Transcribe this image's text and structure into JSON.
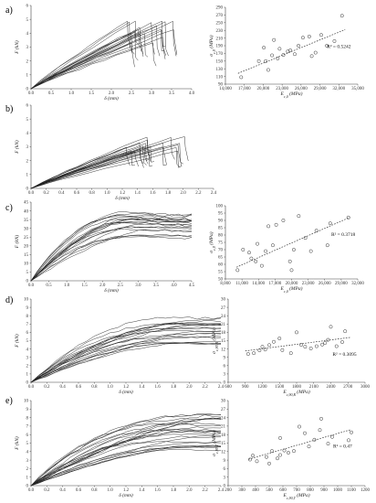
{
  "figure": {
    "width": 412,
    "height": 550
  },
  "chart_data": [
    {
      "id": "a-left",
      "panel_label": "a)",
      "type": "line",
      "xlabel": "δ (mm)",
      "ylabel": "F (kN)",
      "xlim": [
        0,
        4
      ],
      "ylim": [
        0,
        6
      ],
      "xticks": [
        "0.0",
        "0.5",
        "1.0",
        "1.5",
        "2.0",
        "2.5",
        "3.0",
        "3.5",
        "4.0"
      ],
      "yticks": [
        "0",
        "1",
        "2",
        "3",
        "4",
        "5",
        "6"
      ],
      "pattern": "linear_to_peak_then_drop",
      "peak_x_range": [
        2.4,
        3.7
      ],
      "peak_y_range": [
        3.0,
        5.0
      ],
      "n_curves": 20
    },
    {
      "id": "a-right",
      "type": "scatter",
      "xlabel": "E_{c,0} (MPa)",
      "ylabel": "σ_{c,0} (MPa)",
      "xlim": [
        14000,
        35000
      ],
      "ylim": [
        90,
        290
      ],
      "xticks": [
        "14,000",
        "17,000",
        "20,000",
        "23,000",
        "26,000",
        "29,000",
        "32,000",
        "35,000"
      ],
      "yticks": [
        "90",
        "110",
        "130",
        "150",
        "170",
        "190",
        "210",
        "230",
        "250",
        "270",
        "290"
      ],
      "r2_label": "R² = 0.5242",
      "trend": {
        "x": [
          16000,
          33000
        ],
        "y": [
          118,
          232
        ]
      },
      "points": [
        [
          16500,
          108
        ],
        [
          19300,
          150
        ],
        [
          20100,
          185
        ],
        [
          20400,
          150
        ],
        [
          20800,
          127
        ],
        [
          21400,
          165
        ],
        [
          21700,
          205
        ],
        [
          22300,
          157
        ],
        [
          22600,
          182
        ],
        [
          23200,
          166
        ],
        [
          23900,
          175
        ],
        [
          24300,
          178
        ],
        [
          25000,
          168
        ],
        [
          25600,
          190
        ],
        [
          26300,
          211
        ],
        [
          27300,
          214
        ],
        [
          27700,
          163
        ],
        [
          28300,
          172
        ],
        [
          29200,
          218
        ],
        [
          30100,
          190
        ],
        [
          31300,
          202
        ],
        [
          32500,
          268
        ]
      ]
    },
    {
      "id": "b-left",
      "panel_label": "b)",
      "type": "line",
      "xlabel": "δ (mm)",
      "ylabel": "F (kN)",
      "xlim": [
        0,
        2.4
      ],
      "ylim": [
        0,
        6
      ],
      "xticks": [
        "0.0",
        "0.2",
        "0.4",
        "0.6",
        "0.8",
        "1.0",
        "1.2",
        "1.4",
        "1.6",
        "1.8",
        "2.0",
        "2.2",
        "2.4"
      ],
      "yticks": [
        "0",
        "1",
        "2",
        "3",
        "4",
        "5",
        "6"
      ],
      "pattern": "linear_to_peak_then_drop",
      "peak_x_range": [
        1.25,
        2.05
      ],
      "peak_y_range": [
        2.2,
        3.8
      ],
      "n_curves": 20
    },
    {
      "id": "c-left",
      "panel_label": "c)",
      "type": "line",
      "xlabel": "δ (mm)",
      "ylabel": "F (kN)",
      "xlim": [
        0,
        4.5
      ],
      "ylim": [
        0,
        45
      ],
      "xticks": [
        "0.0",
        "0.5",
        "1.0",
        "1.5",
        "2.0",
        "2.5",
        "3.0",
        "3.5",
        "4.0",
        "4.5"
      ],
      "yticks": [
        "0",
        "5",
        "10",
        "15",
        "20",
        "25",
        "30",
        "35",
        "40",
        "45"
      ],
      "pattern": "rise_to_plateau",
      "peak_x_range": [
        2.4,
        3.3
      ],
      "peak_y_range": [
        22,
        39
      ],
      "n_curves": 20
    },
    {
      "id": "c-right",
      "type": "scatter",
      "xlabel": "E_{c,0} (MPa)",
      "ylabel": "σ_{c,0} (MPa)",
      "xlim": [
        8000,
        32000
      ],
      "ylim": [
        50,
        100
      ],
      "xticks": [
        "8,000",
        "11,000",
        "14,000",
        "17,000",
        "20,000",
        "23,000",
        "26,000",
        "29,000",
        "32,000"
      ],
      "yticks": [
        "50",
        "55",
        "60",
        "65",
        "70",
        "75",
        "80",
        "85",
        "90",
        "95",
        "100"
      ],
      "r2_label": "R² = 0.3718",
      "trend": {
        "x": [
          10000,
          30500
        ],
        "y": [
          58,
          92
        ]
      },
      "points": [
        [
          10200,
          56
        ],
        [
          11200,
          70
        ],
        [
          12300,
          68
        ],
        [
          12700,
          64
        ],
        [
          13500,
          62
        ],
        [
          13800,
          74
        ],
        [
          14600,
          59
        ],
        [
          15300,
          69
        ],
        [
          15800,
          86
        ],
        [
          16600,
          73
        ],
        [
          17200,
          87
        ],
        [
          18500,
          90
        ],
        [
          19700,
          62
        ],
        [
          20000,
          56
        ],
        [
          20400,
          70
        ],
        [
          21300,
          93
        ],
        [
          22500,
          78
        ],
        [
          23500,
          69
        ],
        [
          24500,
          83
        ],
        [
          26500,
          73
        ],
        [
          27000,
          88
        ],
        [
          30300,
          92
        ]
      ]
    },
    {
      "id": "d-left",
      "panel_label": "d)",
      "type": "line",
      "xlabel": "δ (mm)",
      "ylabel": "F (kN)",
      "xlim": [
        0,
        2.4
      ],
      "ylim": [
        0,
        10
      ],
      "xticks": [
        "0.0",
        "0.2",
        "0.4",
        "0.6",
        "0.8",
        "1.0",
        "1.2",
        "1.4",
        "1.6",
        "1.8",
        "2.0",
        "2.2",
        "2.4"
      ],
      "yticks": [
        "0",
        "1",
        "2",
        "3",
        "4",
        "5",
        "6",
        "7",
        "8",
        "9",
        "10"
      ],
      "pattern": "rise_to_plateau",
      "peak_x_range": [
        1.7,
        2.4
      ],
      "peak_y_range": [
        3.8,
        8.0
      ],
      "n_curves": 20
    },
    {
      "id": "d-right",
      "type": "scatter",
      "xlabel": "E_{c,90,R} (MPa)",
      "ylabel": "σ_{c,90,R} (MPa)",
      "xlim": [
        600,
        3000
      ],
      "ylim": [
        0,
        30
      ],
      "xticks": [
        "600",
        "900",
        "1200",
        "1500",
        "1800",
        "2100",
        "2400",
        "2700",
        "3000"
      ],
      "yticks": [
        "0",
        "3",
        "6",
        "9",
        "12",
        "15",
        "18",
        "21",
        "24",
        "27",
        "30"
      ],
      "r2_label": "R² = 0.3095",
      "trend": {
        "x": [
          900,
          2750
        ],
        "y": [
          11.3,
          16.2
        ]
      },
      "points": [
        [
          950,
          10.2
        ],
        [
          1050,
          10.5
        ],
        [
          1150,
          11.5
        ],
        [
          1200,
          12.8
        ],
        [
          1250,
          11.8
        ],
        [
          1320,
          13.4
        ],
        [
          1400,
          14.6
        ],
        [
          1500,
          15.8
        ],
        [
          1550,
          11.6
        ],
        [
          1700,
          10.5
        ],
        [
          1800,
          18.0
        ],
        [
          1880,
          13.5
        ],
        [
          1950,
          12.8
        ],
        [
          2050,
          12.2
        ],
        [
          2150,
          13.0
        ],
        [
          2250,
          13.6
        ],
        [
          2300,
          14.2
        ],
        [
          2350,
          15.3
        ],
        [
          2400,
          20.0
        ],
        [
          2500,
          13.0
        ],
        [
          2600,
          14.5
        ],
        [
          2650,
          18.4
        ]
      ]
    },
    {
      "id": "e-left",
      "panel_label": "e)",
      "type": "line",
      "xlabel": "δ (mm)",
      "ylabel": "F (kN)",
      "xlim": [
        0,
        2.4
      ],
      "ylim": [
        0,
        10
      ],
      "xticks": [
        "0.0",
        "0.2",
        "0.4",
        "0.6",
        "0.8",
        "1.0",
        "1.2",
        "1.4",
        "1.6",
        "1.8",
        "2.0",
        "2.2",
        "2.4"
      ],
      "yticks": [
        "0",
        "1",
        "2",
        "3",
        "4",
        "5",
        "6",
        "7",
        "8",
        "9",
        "10"
      ],
      "pattern": "rise_to_plateau",
      "peak_x_range": [
        1.6,
        2.4
      ],
      "peak_y_range": [
        3.2,
        8.6
      ],
      "n_curves": 24
    },
    {
      "id": "e-right",
      "type": "scatter",
      "xlabel": "E_{c,90,T} (MPa)",
      "ylabel": "σ_{c,90,T} (MPa)",
      "xlim": [
        200,
        1200
      ],
      "ylim": [
        0,
        30
      ],
      "xticks": [
        "200",
        "300",
        "400",
        "500",
        "600",
        "700",
        "800",
        "900",
        "1000",
        "1100",
        "1200"
      ],
      "yticks": [
        "0",
        "3",
        "6",
        "9",
        "12",
        "15",
        "18",
        "21",
        "24",
        "27",
        "30"
      ],
      "r2_label": "R² = 0.47",
      "trend": {
        "x": [
          350,
          1100
        ],
        "y": [
          9.3,
          19.8
        ]
      },
      "points": [
        [
          360,
          9.2
        ],
        [
          380,
          10.6
        ],
        [
          410,
          8.6
        ],
        [
          480,
          10.1
        ],
        [
          500,
          7.8
        ],
        [
          520,
          12.2
        ],
        [
          560,
          9.6
        ],
        [
          580,
          10.8
        ],
        [
          610,
          12.4
        ],
        [
          640,
          11.6
        ],
        [
          680,
          12.2
        ],
        [
          720,
          20.8
        ],
        [
          760,
          18.5
        ],
        [
          790,
          13.8
        ],
        [
          830,
          16.2
        ],
        [
          870,
          19.6
        ],
        [
          880,
          23.6
        ],
        [
          930,
          14.8
        ],
        [
          960,
          17.2
        ],
        [
          1080,
          16.0
        ],
        [
          1100,
          18.8
        ],
        [
          580,
          16.8
        ]
      ]
    }
  ]
}
